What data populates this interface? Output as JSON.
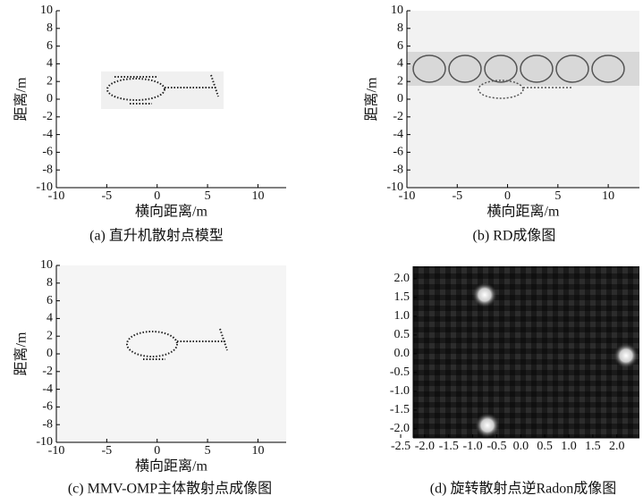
{
  "charts": [
    {
      "type": "image",
      "xlabel": "横向距离/m",
      "ylabel": "距离/m",
      "caption": "(a) 直升机散射点模型",
      "xlim": [
        -10,
        12.8
      ],
      "ylim": [
        -10,
        10
      ],
      "xticks": [
        -10,
        -5,
        0,
        5,
        10
      ],
      "yticks": [
        -10,
        -8,
        -6,
        -4,
        -2,
        0,
        2,
        4,
        6,
        8,
        10
      ]
    },
    {
      "type": "image",
      "xlabel": "横向距离/m",
      "ylabel": "距离/m",
      "caption": "(b) RD成像图",
      "xlim": [
        -10,
        13.1
      ],
      "ylim": [
        -10,
        10
      ],
      "xticks": [
        -10,
        -5,
        0,
        5,
        10
      ],
      "yticks": [
        -10,
        -8,
        -6,
        -4,
        -2,
        0,
        2,
        4,
        6,
        8,
        10
      ]
    },
    {
      "type": "image",
      "xlabel": "横向距离/m",
      "ylabel": "距离/m",
      "caption": "(c) MMV-OMP主体散射点成像图",
      "xlim": [
        -10,
        12.8
      ],
      "ylim": [
        -10,
        10
      ],
      "xticks": [
        -10,
        -5,
        0,
        5,
        10
      ],
      "yticks": [
        -10,
        -8,
        -6,
        -4,
        -2,
        0,
        2,
        4,
        6,
        8,
        10
      ]
    },
    {
      "type": "image",
      "caption": "(d) 旋转散射点逆Radon成像图",
      "xlim": [
        -2.24,
        2.47
      ],
      "ylim": [
        -2.24,
        2.33
      ],
      "xticks": [
        -2.5,
        {
          "value": -2,
          "label": "-2.0"
        },
        -1.5,
        {
          "value": -1,
          "label": "-1.0"
        },
        -0.5,
        {
          "value": 0,
          "label": "0.0"
        },
        0.5,
        {
          "value": 1,
          "label": "1.0"
        },
        1.5,
        {
          "value": 2,
          "label": "2.0"
        }
      ],
      "yticks": [
        {
          "value": 2,
          "label": "2.0"
        },
        1.5,
        {
          "value": 1,
          "label": "1.0"
        },
        0.5,
        {
          "value": 0,
          "label": "0.0"
        },
        -0.5,
        {
          "value": -1,
          "label": "-1.0"
        },
        -1.5,
        {
          "value": -2,
          "label": "-2.0"
        }
      ]
    }
  ]
}
